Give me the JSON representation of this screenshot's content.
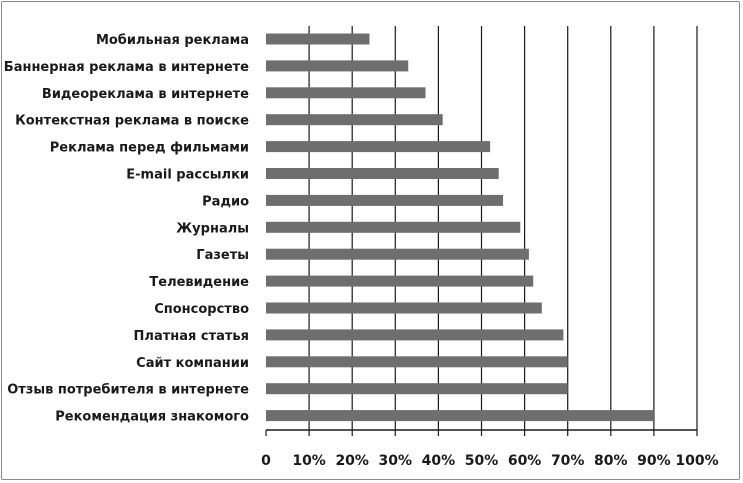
{
  "chart_data": {
    "type": "bar",
    "orientation": "horizontal",
    "title": "",
    "xlabel": "",
    "ylabel": "",
    "categories": [
      "Мобильная реклама",
      "Баннерная реклама в интернете",
      "Видеореклама в интернете",
      "Контекстная реклама в поиске",
      "Реклама перед фильмами",
      "E-mail рассылки",
      "Радио",
      "Журналы",
      "Газеты",
      "Телевидение",
      "Спонсорство",
      "Платная статья",
      "Сайт компании",
      "Отзыв потребителя в интернете",
      "Рекомендация знакомого"
    ],
    "values": [
      24,
      33,
      37,
      41,
      52,
      54,
      55,
      59,
      61,
      62,
      64,
      69,
      70,
      70,
      90
    ],
    "xlim": [
      0,
      100
    ],
    "x_ticks": [
      "0",
      "10%",
      "20%",
      "30%",
      "40%",
      "50%",
      "60%",
      "70%",
      "80%",
      "90%",
      "100%"
    ],
    "grid": "vertical",
    "legend": "none",
    "colors": {
      "bar": "#6e6e6e",
      "grid": "#1a1a1a",
      "text": "#1a1a1a"
    }
  }
}
